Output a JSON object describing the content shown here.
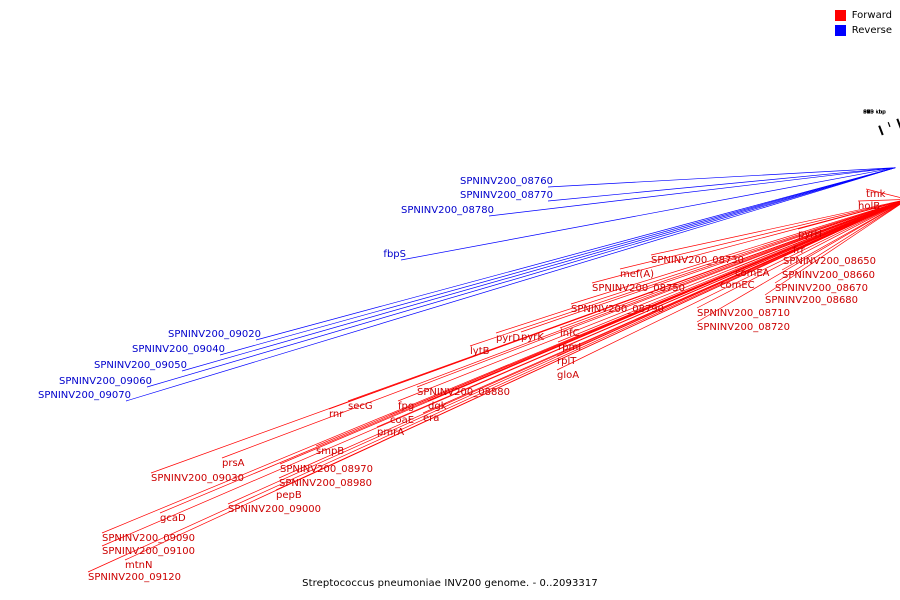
{
  "caption": "Streptococcus pneumoniae INV200 genome. - 0..2093317",
  "legend": [
    {
      "label": "Forward",
      "color": "#ff0000"
    },
    {
      "label": "Reverse",
      "color": "#0000ff"
    }
  ],
  "colors": {
    "forward": "#ff0000",
    "reverse": "#0000ff",
    "backbone": "#888888",
    "label_forward": "#cc0000",
    "label_reverse": "#0000cc"
  },
  "ticks": [
    "870 kbp",
    "875 kbp",
    "880 kbp",
    "885 kbp",
    "890 kbp",
    "895 kbp",
    "900 kbp",
    "905 kbp",
    "910 kbp",
    "915 kbp",
    "920 kbp"
  ],
  "forward_labels": [
    "tmk",
    "holB",
    "pyrH",
    "frr",
    "SPNINV200_08650",
    "SPNINV200_08660",
    "SPNINV200_08670",
    "SPNINV200_08680",
    "SPNINV200_08710",
    "SPNINV200_08720",
    "comEA",
    "comEC",
    "SPNINV200_08730",
    "SPNINV200_08750",
    "mef(A)",
    "SPNINV200_08790",
    "infC",
    "rpmI",
    "rplT",
    "gloA",
    "pyrK",
    "pyrD",
    "lytB",
    "SPNINV200_08880",
    "dgk",
    "era",
    "fpg",
    "coaE",
    "pmrA",
    "secG",
    "rnr",
    "smpB",
    "SPNINV200_08970",
    "SPNINV200_08980",
    "pepB",
    "SPNINV200_09000",
    "prsA",
    "SPNINV200_09030",
    "gcaD",
    "SPNINV200_09090",
    "SPNINV200_09100",
    "mtnN",
    "SPNINV200_09120"
  ],
  "reverse_labels": [
    "SPNINV200_08760",
    "SPNINV200_08770",
    "SPNINV200_08780",
    "fbpS",
    "SPNINV200_09020",
    "SPNINV200_09040",
    "SPNINV200_09050",
    "SPNINV200_09060",
    "SPNINV200_09070"
  ]
}
